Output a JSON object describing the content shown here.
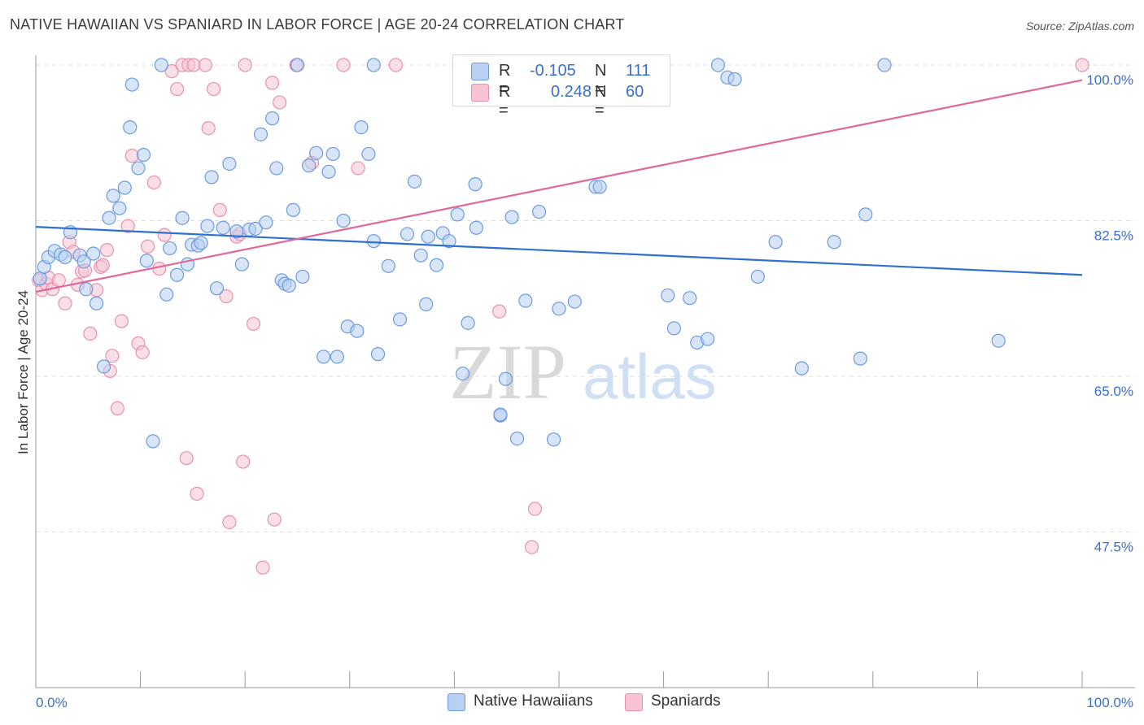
{
  "title": "NATIVE HAWAIIAN VS SPANIARD IN LABOR FORCE | AGE 20-24 CORRELATION CHART",
  "source": "Source: ZipAtlas.com",
  "watermark": {
    "zip": "ZIP",
    "atlas": "atlas"
  },
  "legend": {
    "r_label": "R =",
    "n_label": "N =",
    "rows": [
      {
        "r": "-0.105",
        "n": "111",
        "fill": "#b8d0f2",
        "stroke": "#6a9ae0"
      },
      {
        "r": "0.248",
        "n": "60",
        "fill": "#f8c4d4",
        "stroke": "#e890ac"
      }
    ]
  },
  "bottom_legend": [
    "Native Hawaiians",
    "Spaniards"
  ],
  "colors": {
    "blue_line": "#2f6fd0",
    "pink_line": "#e0679a",
    "tick_label": "#3a6fcc"
  },
  "chart_data": {
    "type": "scatter",
    "ylabel": "In Labor Force | Age 20-24",
    "xlim": [
      0,
      100
    ],
    "ylim": [
      30,
      101.5
    ],
    "x_tick_labels": [
      {
        "value": 0,
        "label": "0.0%"
      },
      {
        "value": 100,
        "label": "100.0%"
      }
    ],
    "y_tick_labels": [
      {
        "value": 47.5,
        "label": "47.5%"
      },
      {
        "value": 65.0,
        "label": "65.0%"
      },
      {
        "value": 82.5,
        "label": "82.5%"
      },
      {
        "value": 100.0,
        "label": "100.0%"
      }
    ],
    "grid": true,
    "series": [
      {
        "name": "Native Hawaiians",
        "fill": "#b8d0f2",
        "stroke": "#6a9ae0",
        "trend": {
          "x": [
            0,
            100
          ],
          "y": [
            81.8,
            76.4
          ]
        },
        "points": [
          [
            0.4,
            76.0
          ],
          [
            0.8,
            77.3
          ],
          [
            1.2,
            78.4
          ],
          [
            1.8,
            79.1
          ],
          [
            2.4,
            78.7
          ],
          [
            2.8,
            78.4
          ],
          [
            3.3,
            81.2
          ],
          [
            4.2,
            78.6
          ],
          [
            4.6,
            77.9
          ],
          [
            4.8,
            74.8
          ],
          [
            5.5,
            78.8
          ],
          [
            5.8,
            73.2
          ],
          [
            6.5,
            66.1
          ],
          [
            7.0,
            82.8
          ],
          [
            7.4,
            85.3
          ],
          [
            8.0,
            83.9
          ],
          [
            8.5,
            86.2
          ],
          [
            9.0,
            93.0
          ],
          [
            9.2,
            97.8
          ],
          [
            9.8,
            88.4
          ],
          [
            10.3,
            89.9
          ],
          [
            10.6,
            78.0
          ],
          [
            11.2,
            57.7
          ],
          [
            12.0,
            100.0
          ],
          [
            12.5,
            74.2
          ],
          [
            12.8,
            79.4
          ],
          [
            13.5,
            76.4
          ],
          [
            14.0,
            82.8
          ],
          [
            14.5,
            77.6
          ],
          [
            14.9,
            79.8
          ],
          [
            15.5,
            79.7
          ],
          [
            15.8,
            80.0
          ],
          [
            16.4,
            81.9
          ],
          [
            16.8,
            87.4
          ],
          [
            17.3,
            74.9
          ],
          [
            17.9,
            81.7
          ],
          [
            18.5,
            88.9
          ],
          [
            19.2,
            81.3
          ],
          [
            19.7,
            77.6
          ],
          [
            20.4,
            81.5
          ],
          [
            21.0,
            81.6
          ],
          [
            21.5,
            92.2
          ],
          [
            22.0,
            82.3
          ],
          [
            22.6,
            94.0
          ],
          [
            23.0,
            88.4
          ],
          [
            23.5,
            75.8
          ],
          [
            23.8,
            75.4
          ],
          [
            24.2,
            75.2
          ],
          [
            24.6,
            83.7
          ],
          [
            25.0,
            100.0
          ],
          [
            25.5,
            76.2
          ],
          [
            26.1,
            88.7
          ],
          [
            26.8,
            90.1
          ],
          [
            27.5,
            67.2
          ],
          [
            28.0,
            88.0
          ],
          [
            28.4,
            90.0
          ],
          [
            28.8,
            67.2
          ],
          [
            29.4,
            82.5
          ],
          [
            29.8,
            70.6
          ],
          [
            30.7,
            70.1
          ],
          [
            31.1,
            93.0
          ],
          [
            31.8,
            90.0
          ],
          [
            32.3,
            80.2
          ],
          [
            32.7,
            67.5
          ],
          [
            32.3,
            100.0
          ],
          [
            33.7,
            77.4
          ],
          [
            34.8,
            71.4
          ],
          [
            35.5,
            81.0
          ],
          [
            36.2,
            86.9
          ],
          [
            36.8,
            78.6
          ],
          [
            37.3,
            73.1
          ],
          [
            37.5,
            80.7
          ],
          [
            38.3,
            77.5
          ],
          [
            38.9,
            81.1
          ],
          [
            39.5,
            80.2
          ],
          [
            40.3,
            83.2
          ],
          [
            40.8,
            65.3
          ],
          [
            41.3,
            71.0
          ],
          [
            42.0,
            86.6
          ],
          [
            42.1,
            81.7
          ],
          [
            44.4,
            60.6
          ],
          [
            44.9,
            64.7
          ],
          [
            44.4,
            60.7
          ],
          [
            45.5,
            82.9
          ],
          [
            46.0,
            58.0
          ],
          [
            46.8,
            73.5
          ],
          [
            48.1,
            83.5
          ],
          [
            49.5,
            57.9
          ],
          [
            50.0,
            72.6
          ],
          [
            51.5,
            73.4
          ],
          [
            53.5,
            86.3
          ],
          [
            53.9,
            86.3
          ],
          [
            56.3,
            100.0
          ],
          [
            60.4,
            74.1
          ],
          [
            61.0,
            70.4
          ],
          [
            62.5,
            73.8
          ],
          [
            63.2,
            68.8
          ],
          [
            64.2,
            69.2
          ],
          [
            65.2,
            100.0
          ],
          [
            66.1,
            98.6
          ],
          [
            66.8,
            98.4
          ],
          [
            69.0,
            76.2
          ],
          [
            70.7,
            80.1
          ],
          [
            73.2,
            65.9
          ],
          [
            76.3,
            80.1
          ],
          [
            78.8,
            67.0
          ],
          [
            79.3,
            83.2
          ],
          [
            92.0,
            69.0
          ],
          [
            81.1,
            100.0
          ]
        ]
      },
      {
        "name": "Spaniards",
        "fill": "#f8c4d4",
        "stroke": "#e890ac",
        "trend": {
          "x": [
            0,
            100
          ],
          "y": [
            74.5,
            98.3
          ]
        },
        "points": [
          [
            0.3,
            75.8
          ],
          [
            0.6,
            74.7
          ],
          [
            1.0,
            75.4
          ],
          [
            1.2,
            76.1
          ],
          [
            1.6,
            74.8
          ],
          [
            2.2,
            75.8
          ],
          [
            2.8,
            73.2
          ],
          [
            3.2,
            80.1
          ],
          [
            3.6,
            79.0
          ],
          [
            4.0,
            75.3
          ],
          [
            4.4,
            76.8
          ],
          [
            4.7,
            76.9
          ],
          [
            5.2,
            69.8
          ],
          [
            5.8,
            74.7
          ],
          [
            6.2,
            77.3
          ],
          [
            6.4,
            77.5
          ],
          [
            6.8,
            79.2
          ],
          [
            7.1,
            65.6
          ],
          [
            7.3,
            67.3
          ],
          [
            7.8,
            61.4
          ],
          [
            8.2,
            71.2
          ],
          [
            8.8,
            81.9
          ],
          [
            9.2,
            89.8
          ],
          [
            9.8,
            68.7
          ],
          [
            10.2,
            67.7
          ],
          [
            10.7,
            79.6
          ],
          [
            11.3,
            86.8
          ],
          [
            11.8,
            77.1
          ],
          [
            12.3,
            80.9
          ],
          [
            13.0,
            99.3
          ],
          [
            13.5,
            97.3
          ],
          [
            14.0,
            100.0
          ],
          [
            14.4,
            55.8
          ],
          [
            14.6,
            100.0
          ],
          [
            15.1,
            100.0
          ],
          [
            15.4,
            51.8
          ],
          [
            16.2,
            100.0
          ],
          [
            16.5,
            92.9
          ],
          [
            17.0,
            97.3
          ],
          [
            17.6,
            83.7
          ],
          [
            18.2,
            74.0
          ],
          [
            18.5,
            48.6
          ],
          [
            19.2,
            80.7
          ],
          [
            19.5,
            81.0
          ],
          [
            19.8,
            55.4
          ],
          [
            20.0,
            100.0
          ],
          [
            20.8,
            70.9
          ],
          [
            21.7,
            43.5
          ],
          [
            22.6,
            98.0
          ],
          [
            22.8,
            48.9
          ],
          [
            23.3,
            95.8
          ],
          [
            24.9,
            100.0
          ],
          [
            26.4,
            89.0
          ],
          [
            29.4,
            100.0
          ],
          [
            30.8,
            88.4
          ],
          [
            34.4,
            100.0
          ],
          [
            44.3,
            72.3
          ],
          [
            47.4,
            45.8
          ],
          [
            47.7,
            50.1
          ],
          [
            100.0,
            100.0
          ]
        ]
      }
    ]
  }
}
